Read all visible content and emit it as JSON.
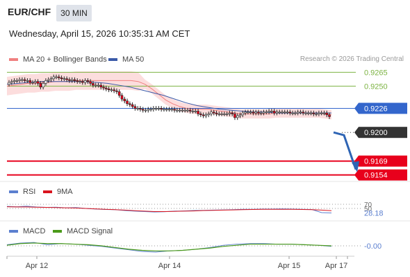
{
  "header": {
    "pair": "EUR/CHF",
    "timeframe": "30 MIN",
    "datetime": "Wednesday, April 15, 2026 10:35:31 AM CET"
  },
  "legend": {
    "ma20_bb": "MA 20 + Bollinger Bands",
    "ma50": "MA 50",
    "credit": "Research © 2026 Trading Central",
    "rsi": "RSI",
    "rsi_ma": "9MA",
    "macd": "MACD",
    "macd_signal": "MACD Signal"
  },
  "colors": {
    "candle": "#e8001c",
    "ma20": "#f08080",
    "ma50": "#3a5aa8",
    "bollinger_fill": "#fbd7d7",
    "resistance": "#7cb342",
    "pivot": "#3366cc",
    "support": "#e8001c",
    "arrow": "#2e64b4",
    "rsi": "#5b7fcf",
    "rsi_ma": "#d9141e",
    "macd": "#5b7fcf",
    "macd_signal": "#4a9a1a"
  },
  "chart_data": [
    {
      "type": "candlestick",
      "title": "EUR/CHF",
      "x_ticks": [
        "Apr 12",
        "Apr 14",
        "Apr 15",
        "Apr 17"
      ],
      "ylim": [
        0.915,
        0.9272
      ],
      "series": [
        {
          "name": "EUR/CHF",
          "close": [
            0.9254,
            0.9255,
            0.9256,
            0.9256,
            0.9257,
            0.9257,
            0.9256,
            0.9256,
            0.9254,
            0.9254,
            0.9255,
            0.9253,
            0.9249,
            0.9253,
            0.9256,
            0.9257,
            0.9258,
            0.926,
            0.926,
            0.9259,
            0.9258,
            0.9258,
            0.9257,
            0.9256,
            0.9257,
            0.9256,
            0.9255,
            0.9255,
            0.9254,
            0.9256,
            0.9255,
            0.9253,
            0.9251,
            0.9251,
            0.9251,
            0.9249,
            0.9248,
            0.9247,
            0.9246,
            0.9246,
            0.9245,
            0.9244,
            0.924,
            0.9236,
            0.9234,
            0.9231,
            0.923,
            0.9228,
            0.9226,
            0.9226,
            0.9225,
            0.9224,
            0.9224,
            0.9225,
            0.9225,
            0.9226,
            0.9226,
            0.9226,
            0.9225,
            0.9225,
            0.9225,
            0.9225,
            0.9225,
            0.9224,
            0.9224,
            0.9224,
            0.9224,
            0.9224,
            0.9224,
            0.9223,
            0.9223,
            0.9223,
            0.922,
            0.9219,
            0.9218,
            0.9219,
            0.922,
            0.9222,
            0.9221,
            0.922,
            0.922,
            0.922,
            0.922,
            0.922,
            0.9221,
            0.922,
            0.9216,
            0.9218,
            0.9219,
            0.9221,
            0.9222,
            0.9222,
            0.9222,
            0.9221,
            0.9222,
            0.9221,
            0.9221,
            0.9222,
            0.9222,
            0.9223,
            0.9223,
            0.9221,
            0.9222,
            0.9222,
            0.9222,
            0.9222,
            0.9222,
            0.9221,
            0.9221,
            0.9221,
            0.9222,
            0.9222,
            0.9221,
            0.9221,
            0.9221,
            0.9221,
            0.922,
            0.922,
            0.9221,
            0.9221,
            0.9221,
            0.9219,
            0.9217
          ],
          "ohlc_note": "approximate closes read from candles"
        },
        {
          "name": "MA 20",
          "values": [
            0.925,
            0.9251,
            0.9252,
            0.9253,
            0.9253,
            0.9254,
            0.9254,
            0.9255,
            0.9255,
            0.9255,
            0.9256,
            0.9256,
            0.9256,
            0.9256,
            0.9256,
            0.9256,
            0.9256,
            0.9256,
            0.9256,
            0.9255,
            0.9252,
            0.9247,
            0.9241,
            0.9235,
            0.9231,
            0.9228,
            0.9226,
            0.9225,
            0.9225,
            0.9225,
            0.9224,
            0.9223,
            0.9222,
            0.9221,
            0.922,
            0.922,
            0.922,
            0.922,
            0.922,
            0.9221,
            0.9221,
            0.9221,
            0.9221,
            0.9221,
            0.9221,
            0.9221,
            0.922,
            0.9219
          ]
        },
        {
          "name": "MA 50",
          "values": [
            0.9252,
            0.9253,
            0.9254,
            0.9255,
            0.9255,
            0.9255,
            0.9255,
            0.9255,
            0.9254,
            0.9253,
            0.9251,
            0.9249,
            0.9246,
            0.9243,
            0.924,
            0.9236,
            0.9232,
            0.9229,
            0.9227,
            0.9225,
            0.9224,
            0.9223,
            0.9222,
            0.9222,
            0.9221,
            0.9221,
            0.9221,
            0.9221,
            0.9221,
            0.9221
          ]
        }
      ],
      "levels": [
        {
          "label": "0.9265",
          "value": 0.9265,
          "kind": "resistance"
        },
        {
          "label": "0.9250",
          "value": 0.925,
          "kind": "resistance"
        },
        {
          "label": "0.9226",
          "value": 0.9226,
          "kind": "pivot"
        },
        {
          "label": "0.9200",
          "value": 0.92,
          "kind": "last"
        },
        {
          "label": "0.9169",
          "value": 0.9169,
          "kind": "support"
        },
        {
          "label": "0.9154",
          "value": 0.9154,
          "kind": "support"
        }
      ],
      "projection": [
        0.92,
        0.9197,
        0.916
      ]
    },
    {
      "type": "line",
      "title": "RSI",
      "ylim": [
        0,
        100
      ],
      "ticks": [
        {
          "label": "70",
          "value": 70
        },
        {
          "label": "50",
          "value": 50
        }
      ],
      "last_label": "28.18",
      "series": [
        {
          "name": "RSI",
          "values": [
            60,
            58,
            61,
            57,
            55,
            56,
            53,
            54,
            50,
            47,
            45,
            44,
            40,
            37,
            35,
            33,
            34,
            37,
            38,
            40,
            41,
            42,
            43,
            44,
            46,
            46,
            47,
            47,
            48,
            47,
            46,
            45,
            30,
            28.18
          ]
        },
        {
          "name": "9MA",
          "values": [
            58,
            57,
            57,
            56,
            55,
            54,
            53,
            52,
            50,
            48,
            46,
            44,
            42,
            39,
            37,
            35,
            35,
            36,
            37,
            38,
            40,
            41,
            42,
            43,
            44,
            45,
            46,
            46,
            46,
            46,
            45,
            44,
            42,
            39
          ]
        }
      ]
    },
    {
      "type": "line",
      "title": "MACD",
      "ylim": [
        -0.0016,
        0.0016
      ],
      "last_label": "-0.00",
      "series": [
        {
          "name": "MACD",
          "values": [
            0.0002,
            0.0005,
            0.0006,
            0.0002,
            0.0004,
            0.0003,
            0.0001,
            -0.0001,
            -0.0004,
            -0.0007,
            -0.001,
            -0.0011,
            -0.0009,
            -0.0008,
            -0.0006,
            -0.0003,
            0.0001,
            0.0003,
            0.0004,
            0.0004,
            0.0003,
            0.0003,
            0.0002,
            0.0001,
            -0.0001
          ]
        },
        {
          "name": "MACD Signal",
          "values": [
            0.0001,
            0.0004,
            0.0005,
            0.0004,
            0.0004,
            0.0003,
            0.0002,
            0.0,
            -0.0003,
            -0.0006,
            -0.0008,
            -0.0009,
            -0.0009,
            -0.0008,
            -0.0006,
            -0.0004,
            -0.0001,
            0.0001,
            0.0003,
            0.0003,
            0.0003,
            0.0003,
            0.0002,
            0.0001,
            -0.0
          ]
        }
      ]
    }
  ]
}
